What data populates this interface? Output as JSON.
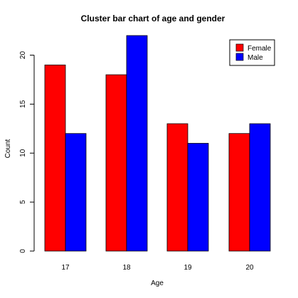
{
  "chart_data": {
    "type": "bar",
    "title": "Cluster bar chart of age and gender",
    "xlabel": "Age",
    "ylabel": "Count",
    "categories": [
      "17",
      "18",
      "19",
      "20"
    ],
    "series": [
      {
        "name": "Female",
        "color": "#ff0000",
        "values": [
          19,
          18,
          13,
          12
        ]
      },
      {
        "name": "Male",
        "color": "#0000ff",
        "values": [
          12,
          22,
          11,
          13
        ]
      }
    ],
    "ylim": [
      0,
      22
    ],
    "yticks": [
      0,
      5,
      10,
      15,
      20
    ],
    "grid": false,
    "legend_position": "top-right"
  }
}
